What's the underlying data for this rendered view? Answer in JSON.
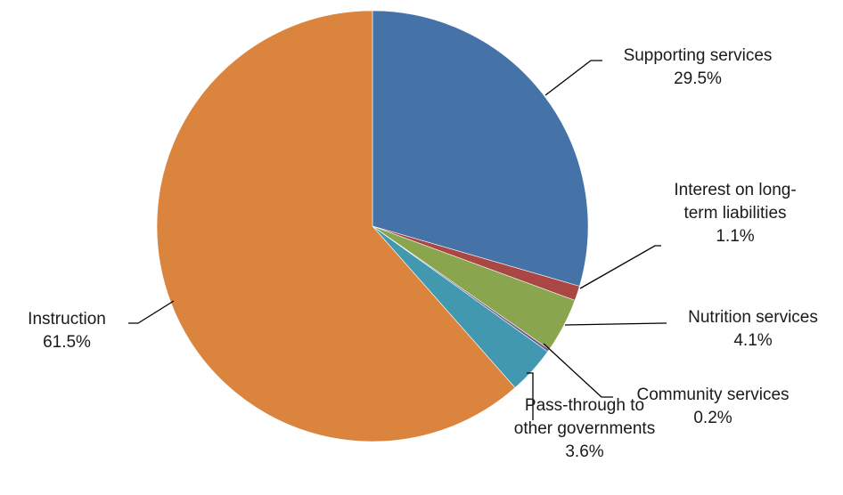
{
  "chart_data": {
    "type": "pie",
    "start_angle_deg": 0,
    "direction": "clockwise",
    "legend": "none",
    "slices": [
      {
        "label_lines": [
          "Supporting services"
        ],
        "value": 29.5,
        "value_label": "29.5%",
        "color": "#4572A7"
      },
      {
        "label_lines": [
          "Interest on long-",
          "term liabilities"
        ],
        "value": 1.1,
        "value_label": "1.1%",
        "color": "#AA4643"
      },
      {
        "label_lines": [
          "Nutrition services"
        ],
        "value": 4.1,
        "value_label": "4.1%",
        "color": "#89A54E"
      },
      {
        "label_lines": [
          "Community services"
        ],
        "value": 0.2,
        "value_label": "0.2%",
        "color": "#71588F"
      },
      {
        "label_lines": [
          "Pass-through to",
          "other governments"
        ],
        "value": 3.6,
        "value_label": "3.6%",
        "color": "#4198AF"
      },
      {
        "label_lines": [
          "Instruction"
        ],
        "value": 61.5,
        "value_label": "61.5%",
        "color": "#DB843D"
      }
    ]
  }
}
